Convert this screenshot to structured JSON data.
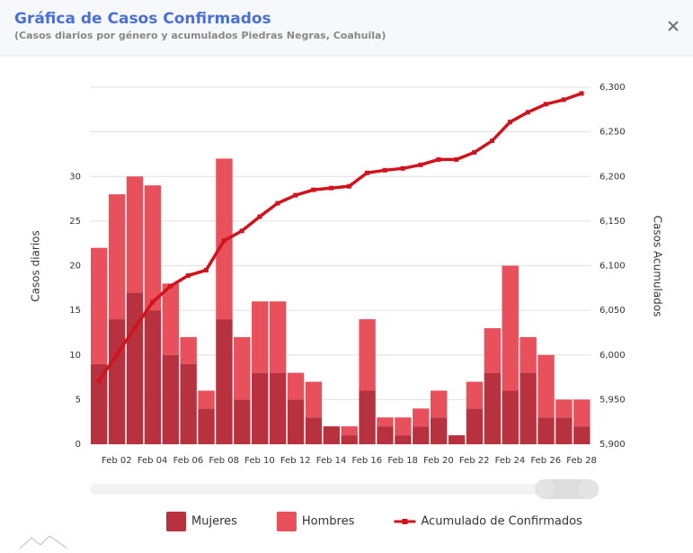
{
  "chart_data": {
    "type": "bar",
    "title": "Gráfica de Casos Confirmados",
    "subtitle": "(Casos diarios por género y acumulados Piedras Negras, Coahuila)",
    "ylabel": "Casos diarios",
    "y2label": "Casos Acumulados",
    "stacked": true,
    "categories": [
      null,
      "Feb 02",
      null,
      "Feb 04",
      null,
      "Feb 06",
      null,
      "Feb 08",
      null,
      "Feb 10",
      null,
      "Feb 12",
      null,
      "Feb 14",
      null,
      "Feb 16",
      null,
      "Feb 18",
      null,
      "Feb 20",
      null,
      "Feb 22",
      null,
      "Feb 24",
      null,
      "Feb 26",
      null,
      "Feb 28"
    ],
    "series": [
      {
        "name": "Mujeres",
        "color": "#b8313e",
        "values": [
          9,
          14,
          17,
          15,
          10,
          9,
          4,
          14,
          5,
          8,
          8,
          5,
          3,
          2,
          1,
          6,
          2,
          1,
          2,
          3,
          1,
          4,
          8,
          6,
          8,
          3,
          3,
          2
        ]
      },
      {
        "name": "Hombres",
        "color": "#e8505b",
        "values": [
          13,
          14,
          13,
          14,
          8,
          3,
          2,
          18,
          7,
          8,
          8,
          3,
          4,
          0,
          1,
          8,
          1,
          2,
          2,
          3,
          0,
          3,
          5,
          14,
          4,
          7,
          2,
          3
        ]
      },
      {
        "name": "Acumulado de Confirmados",
        "type": "line",
        "axis": "y2",
        "color": "#d0141e",
        "values": [
          5971,
          6000,
          6030,
          6059,
          6077,
          6089,
          6095,
          6128,
          6139,
          6155,
          6170,
          6179,
          6185,
          6187,
          6189,
          6204,
          6207,
          6209,
          6213,
          6219,
          6219,
          6227,
          6240,
          6261,
          6272,
          6281,
          6286,
          6293
        ]
      }
    ],
    "ylim": [
      0,
      40
    ],
    "yticks": [
      0,
      5,
      10,
      15,
      20,
      25,
      30
    ],
    "y2lim": [
      5900,
      6300
    ],
    "y2ticks": [
      {
        "value": 5900,
        "label": "5,900"
      },
      {
        "value": 5950,
        "label": "5,950"
      },
      {
        "value": 6000,
        "label": "6,000"
      },
      {
        "value": 6050,
        "label": "6,050"
      },
      {
        "value": 6100,
        "label": "6,100"
      },
      {
        "value": 6150,
        "label": "6,150"
      },
      {
        "value": 6200,
        "label": "6,200"
      },
      {
        "value": 6250,
        "label": "6,250"
      },
      {
        "value": 6300,
        "label": "6,300"
      }
    ],
    "grid": true,
    "legend": "bottom"
  }
}
